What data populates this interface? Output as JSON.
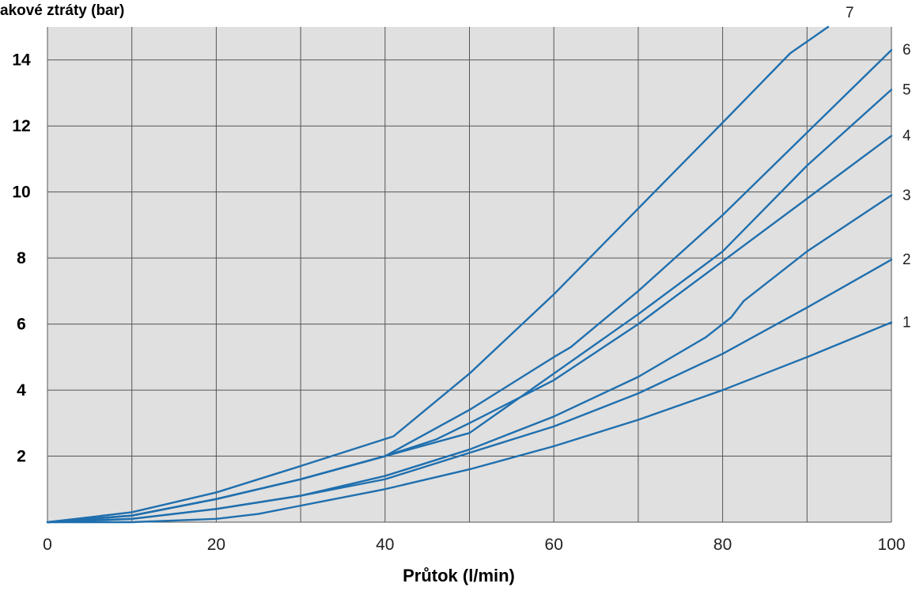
{
  "chart_data": {
    "type": "line",
    "ylabel": "akové ztráty (bar)",
    "xlabel": "Průtok (l/min)",
    "xlim": [
      0,
      100
    ],
    "ylim": [
      0,
      15
    ],
    "xticks": [
      0,
      20,
      40,
      60,
      80,
      100
    ],
    "yticks": [
      2,
      4,
      6,
      8,
      10,
      12,
      14
    ],
    "grid": true,
    "colors": {
      "background": "#e0e0e0",
      "grid": "#555555",
      "line": "#1f6fae"
    },
    "series": [
      {
        "name": "1",
        "points": [
          [
            0,
            0
          ],
          [
            10,
            0
          ],
          [
            20,
            0.1
          ],
          [
            25,
            0.25
          ],
          [
            30,
            0.5
          ],
          [
            40,
            1.0
          ],
          [
            50,
            1.6
          ],
          [
            60,
            2.3
          ],
          [
            70,
            3.1
          ],
          [
            80,
            4.0
          ],
          [
            90,
            5.0
          ],
          [
            100,
            6.05
          ]
        ]
      },
      {
        "name": "2",
        "points": [
          [
            0,
            0
          ],
          [
            10,
            0.1
          ],
          [
            20,
            0.4
          ],
          [
            30,
            0.8
          ],
          [
            40,
            1.3
          ],
          [
            50,
            2.1
          ],
          [
            60,
            2.9
          ],
          [
            70,
            3.9
          ],
          [
            80,
            5.1
          ],
          [
            90,
            6.5
          ],
          [
            100,
            7.95
          ]
        ]
      },
      {
        "name": "3",
        "points": [
          [
            0,
            0
          ],
          [
            10,
            0.1
          ],
          [
            20,
            0.4
          ],
          [
            30,
            0.8
          ],
          [
            40,
            1.4
          ],
          [
            50,
            2.2
          ],
          [
            60,
            3.2
          ],
          [
            70,
            4.4
          ],
          [
            78,
            5.6
          ],
          [
            81,
            6.2
          ],
          [
            82.5,
            6.7
          ],
          [
            90,
            8.2
          ],
          [
            100,
            9.9
          ]
        ]
      },
      {
        "name": "4",
        "points": [
          [
            0,
            0
          ],
          [
            10,
            0.2
          ],
          [
            20,
            0.7
          ],
          [
            30,
            1.3
          ],
          [
            40,
            2.0
          ],
          [
            46,
            2.5
          ],
          [
            50,
            3.0
          ],
          [
            60,
            4.3
          ],
          [
            70,
            6.0
          ],
          [
            80,
            7.9
          ],
          [
            90,
            9.8
          ],
          [
            100,
            11.7
          ]
        ]
      },
      {
        "name": "5",
        "points": [
          [
            0,
            0
          ],
          [
            10,
            0.2
          ],
          [
            20,
            0.7
          ],
          [
            30,
            1.3
          ],
          [
            40,
            2.0
          ],
          [
            50,
            2.7
          ],
          [
            55,
            3.6
          ],
          [
            60,
            4.5
          ],
          [
            70,
            6.3
          ],
          [
            80,
            8.2
          ],
          [
            90,
            10.8
          ],
          [
            100,
            13.1
          ]
        ]
      },
      {
        "name": "6",
        "points": [
          [
            0,
            0
          ],
          [
            10,
            0.2
          ],
          [
            20,
            0.7
          ],
          [
            30,
            1.3
          ],
          [
            40,
            2.0
          ],
          [
            45,
            2.7
          ],
          [
            50,
            3.4
          ],
          [
            60,
            5.0
          ],
          [
            62,
            5.3
          ],
          [
            70,
            7.0
          ],
          [
            80,
            9.3
          ],
          [
            90,
            11.8
          ],
          [
            100,
            14.3
          ]
        ]
      },
      {
        "name": "7",
        "points": [
          [
            0,
            0
          ],
          [
            10,
            0.3
          ],
          [
            20,
            0.9
          ],
          [
            30,
            1.7
          ],
          [
            41,
            2.6
          ],
          [
            50,
            4.5
          ],
          [
            60,
            6.9
          ],
          [
            70,
            9.5
          ],
          [
            80,
            12.1
          ],
          [
            88,
            14.2
          ],
          [
            92.5,
            15.0
          ]
        ]
      }
    ]
  }
}
